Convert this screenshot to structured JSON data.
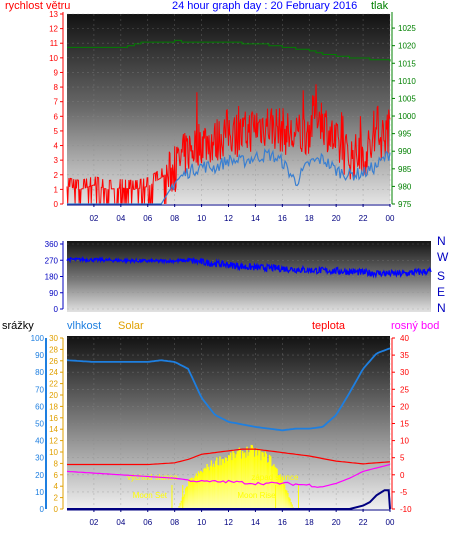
{
  "header": {
    "left_label": "rychlost větru",
    "title": "24 hour graph day : 20 February 2016",
    "right_label": "tlak"
  },
  "colors": {
    "wind_speed": "#ff0000",
    "wind_avg": "#3a7fd0",
    "pressure": "#008000",
    "direction": "#0000ff",
    "humidity": "#1e7fe0",
    "temperature": "#ff0000",
    "dew_point": "#ff00ff",
    "solar": "#ffff00",
    "rain": "#000080",
    "sun_markers": "#ffff00"
  },
  "chart_data": [
    {
      "type": "line",
      "x_labels": [
        "02",
        "04",
        "06",
        "08",
        "10",
        "12",
        "14",
        "16",
        "18",
        "20",
        "22",
        "00"
      ],
      "left_axis": {
        "label": "rychlost větru",
        "ticks": [
          0,
          1,
          2,
          3,
          4,
          5,
          6,
          7,
          8,
          9,
          10,
          11,
          12,
          13
        ],
        "range": [
          0,
          13
        ]
      },
      "right_axis": {
        "label": "tlak",
        "ticks": [
          975,
          980,
          985,
          990,
          995,
          1000,
          1005,
          1010,
          1015,
          1020,
          1025
        ],
        "range": [
          975,
          1029
        ]
      },
      "series": [
        {
          "kind": "wind_gust",
          "axis": "left",
          "x_hours": [
            0,
            1,
            2,
            3,
            4,
            5,
            6,
            7,
            8,
            8.5,
            9,
            10,
            11,
            12,
            13,
            14,
            15,
            16,
            17,
            18,
            18.5,
            19,
            20,
            21,
            22,
            23,
            24
          ],
          "values": [
            1.2,
            1,
            1.3,
            1,
            1.1,
            1,
            1.2,
            1.8,
            2.5,
            3.2,
            3.8,
            4.5,
            4.4,
            5.2,
            4.8,
            5.5,
            5.6,
            5.2,
            4.6,
            5.2,
            6.8,
            5.9,
            4.2,
            3.4,
            3.5,
            4.4,
            5.2
          ]
        },
        {
          "kind": "wind_average",
          "axis": "left",
          "x_hours": [
            0,
            1,
            2,
            3,
            4,
            5,
            6,
            7,
            8,
            9,
            10,
            11,
            12,
            13,
            14,
            15,
            16,
            17,
            18,
            19,
            20,
            21,
            22,
            23,
            24
          ],
          "values": [
            0,
            0,
            0,
            0,
            0,
            0,
            0,
            0,
            1.5,
            2.2,
            2.6,
            2.5,
            3.0,
            2.9,
            3.2,
            3.4,
            2.9,
            1.5,
            2.8,
            3.1,
            2.3,
            2.0,
            2.1,
            2.6,
            3.5
          ]
        },
        {
          "kind": "pressure",
          "axis": "right",
          "x_hours": [
            0,
            2,
            4,
            5,
            6,
            8,
            10,
            12,
            14,
            16,
            17,
            18,
            19,
            20,
            21,
            22,
            23,
            24
          ],
          "values": [
            1019.5,
            1019.5,
            1019.5,
            1020.5,
            1021,
            1021.3,
            1021,
            1020.8,
            1020.6,
            1019.7,
            1019.2,
            1018.3,
            1017.6,
            1017.2,
            1016.6,
            1016.3,
            1016,
            1015.6
          ]
        }
      ]
    },
    {
      "type": "scatter",
      "x_labels": [
        "02",
        "04",
        "06",
        "08",
        "10",
        "12",
        "14",
        "16",
        "18",
        "20",
        "22",
        "00"
      ],
      "left_axis": {
        "ticks": [
          0,
          90,
          180,
          270,
          360
        ],
        "range": [
          0,
          360
        ]
      },
      "right_axis": {
        "ticks": [
          "N",
          "W",
          "S",
          "E",
          "N"
        ]
      },
      "series": [
        {
          "kind": "wind_direction",
          "x_hours": [
            0,
            2,
            4,
            6,
            8,
            10,
            12,
            14,
            16,
            18,
            20,
            22,
            24
          ],
          "values": [
            275,
            272,
            268,
            265,
            268,
            250,
            232,
            225,
            215,
            210,
            200,
            195,
            210
          ]
        }
      ]
    },
    {
      "type": "line",
      "x_labels": [
        "02",
        "04",
        "06",
        "08",
        "10",
        "12",
        "14",
        "16",
        "18",
        "20",
        "22",
        "00"
      ],
      "left_axis_rain": {
        "label": "srážky",
        "ticks": [
          0,
          10,
          20,
          30,
          40,
          50,
          60,
          70,
          80,
          90,
          100
        ]
      },
      "left_axis_humidity": {
        "label": "vlhkost",
        "ticks": [
          0,
          2,
          4,
          6,
          8,
          10,
          12,
          14,
          16,
          18,
          20,
          22,
          24,
          26,
          28,
          30
        ]
      },
      "solar_label": "Solar",
      "temperature_label": "teplota",
      "dew_label": "rosný bod",
      "right_axis": {
        "ticks": [
          -10,
          -5,
          0,
          5,
          10,
          15,
          20,
          25,
          30,
          35,
          40
        ],
        "range": [
          -10,
          40
        ]
      },
      "annotations": [
        "Moon Set",
        "východ slunce",
        "západ slunce",
        "Moon Rise"
      ],
      "series": [
        {
          "kind": "humidity",
          "axis": "left_0_to_100",
          "x_hours": [
            0,
            2,
            4,
            6,
            7,
            8,
            9,
            10,
            11,
            12,
            14,
            16,
            17,
            18,
            19,
            20,
            21,
            22,
            23,
            24
          ],
          "values": [
            87,
            86,
            86,
            86,
            87,
            86,
            82,
            65,
            55,
            51,
            48,
            46,
            47,
            47,
            48,
            55,
            68,
            82,
            91,
            94
          ]
        },
        {
          "kind": "temperature",
          "axis": "right",
          "x_hours": [
            0,
            2,
            4,
            6,
            8,
            9,
            10,
            11,
            12,
            13,
            14,
            15,
            16,
            17,
            18,
            20,
            22,
            24
          ],
          "values": [
            3,
            3,
            3,
            3,
            3.5,
            4.5,
            6,
            6.5,
            7,
            7.5,
            7.5,
            7,
            6.5,
            6,
            5.5,
            4,
            3.2,
            3.8
          ]
        },
        {
          "kind": "dew_point",
          "axis": "right",
          "x_hours": [
            0,
            2,
            4,
            6,
            8,
            10,
            12,
            14,
            16,
            18,
            19,
            20,
            21,
            22,
            24
          ],
          "values": [
            1,
            0.5,
            0,
            -0.5,
            -1,
            -2,
            -2,
            -2.5,
            -2.5,
            -3,
            -3.5,
            -2.5,
            -1,
            1,
            3
          ]
        },
        {
          "kind": "solar",
          "axis": "left_0_to_100",
          "x_hours": [
            8.2,
            9,
            10,
            11,
            12,
            13,
            13.6,
            14,
            15,
            16,
            16.8
          ],
          "values": [
            0,
            17,
            24,
            30,
            33,
            36,
            37,
            36,
            32,
            18,
            0
          ]
        },
        {
          "kind": "rain",
          "axis": "left_0_to_100",
          "x_hours": [
            0,
            20,
            21,
            22,
            22.5,
            23,
            23.6,
            23.9,
            24
          ],
          "values": [
            0,
            0,
            0,
            2,
            4,
            8,
            11,
            11,
            0
          ]
        }
      ]
    }
  ]
}
